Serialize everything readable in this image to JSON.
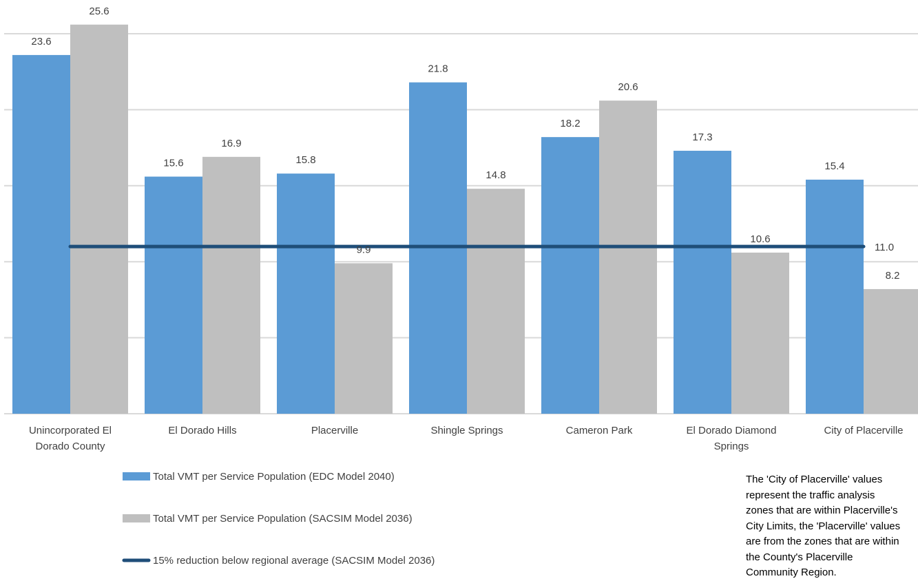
{
  "chart_data": {
    "type": "bar",
    "categories": [
      [
        "Unincorporated El",
        "Dorado County"
      ],
      [
        "El Dorado Hills"
      ],
      [
        "Placerville"
      ],
      [
        "Shingle Springs"
      ],
      [
        "Cameron Park"
      ],
      [
        "El Dorado Diamond",
        "Springs"
      ],
      [
        "City of Placerville"
      ]
    ],
    "series": [
      {
        "name": "Total VMT per Service Population (EDC Model 2040)",
        "color": "#5b9bd5",
        "values": [
          23.6,
          15.6,
          15.8,
          21.8,
          18.2,
          17.3,
          15.4
        ],
        "labels": [
          "23.6",
          "15.6",
          "15.8",
          "21.8",
          "18.2",
          "17.3",
          "15.4"
        ]
      },
      {
        "name": "Total VMT per Service Population (SACSIM Model 2036)",
        "color": "#bfbfbf",
        "values": [
          25.6,
          16.9,
          9.9,
          14.8,
          20.6,
          10.6,
          8.2
        ],
        "labels": [
          "25.6",
          "16.9",
          "9.9",
          "14.8",
          "20.6",
          "10.6",
          "8.2"
        ]
      }
    ],
    "threshold": {
      "name": "15% reduction below regional average (SACSIM Model 2036)",
      "color": "#1f4e79",
      "value": 11.0,
      "label": "11.0"
    },
    "ylim": [
      0,
      25
    ],
    "gridlines": [
      0,
      5,
      10,
      15,
      20,
      25
    ],
    "grid": true,
    "legend": "bottom-left",
    "title": "",
    "xlabel": "",
    "ylabel": ""
  },
  "note": "The 'City of Placerville' values\nrepresent the traffic analysis\nzones that are within Placerville's\nCity Limits, the 'Placerville' values\nare from the zones that are within\nthe County's Placerville\nCommunity Region.",
  "colors": {
    "text": "#404040",
    "grid": "#d9d9d9"
  }
}
